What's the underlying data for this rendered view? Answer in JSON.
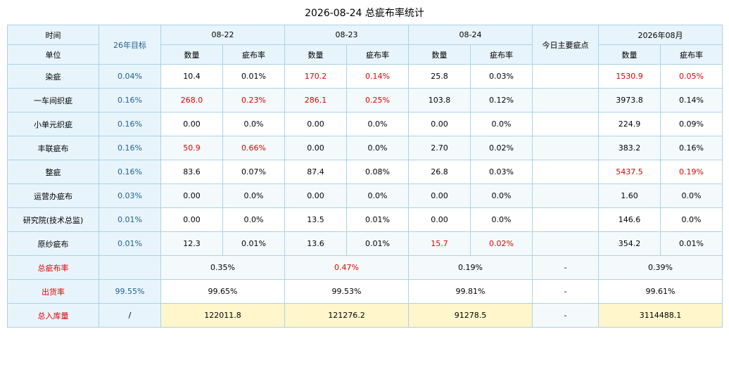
{
  "title": "2026-08-24 总疵布率统计",
  "header": {
    "time_label": "时间",
    "unit_label": "单位",
    "target_label": "26年目标",
    "dates": [
      "08-22",
      "08-23",
      "08-24"
    ],
    "main_defect_label": "今日主要疵点",
    "month_label": "2026年08月",
    "qty_label": "数量",
    "rate_label": "疵布率"
  },
  "rows": [
    {
      "unit": "染疵",
      "target": "0.04%",
      "d1_qty": "10.4",
      "d1_rate": "0.01%",
      "d2_qty": "170.2",
      "d2_rate": "0.14%",
      "d3_qty": "25.8",
      "d3_rate": "0.03%",
      "main": "",
      "m_qty": "1530.9",
      "m_rate": "0.05%"
    },
    {
      "unit": "一车间织疵",
      "target": "0.16%",
      "d1_qty": "268.0",
      "d1_rate": "0.23%",
      "d2_qty": "286.1",
      "d2_rate": "0.25%",
      "d3_qty": "103.8",
      "d3_rate": "0.12%",
      "main": "",
      "m_qty": "3973.8",
      "m_rate": "0.14%"
    },
    {
      "unit": "小单元织疵",
      "target": "0.16%",
      "d1_qty": "0.00",
      "d1_rate": "0.0%",
      "d2_qty": "0.00",
      "d2_rate": "0.0%",
      "d3_qty": "0.00",
      "d3_rate": "0.0%",
      "main": "",
      "m_qty": "224.9",
      "m_rate": "0.09%"
    },
    {
      "unit": "丰联疵布",
      "target": "0.16%",
      "d1_qty": "50.9",
      "d1_rate": "0.66%",
      "d2_qty": "0.00",
      "d2_rate": "0.0%",
      "d3_qty": "2.70",
      "d3_rate": "0.02%",
      "main": "",
      "m_qty": "383.2",
      "m_rate": "0.16%"
    },
    {
      "unit": "整疵",
      "target": "0.16%",
      "d1_qty": "83.6",
      "d1_rate": "0.07%",
      "d2_qty": "87.4",
      "d2_rate": "0.08%",
      "d3_qty": "26.8",
      "d3_rate": "0.03%",
      "main": "",
      "m_qty": "5437.5",
      "m_rate": "0.19%"
    },
    {
      "unit": "运营办疵布",
      "target": "0.03%",
      "d1_qty": "0.00",
      "d1_rate": "0.0%",
      "d2_qty": "0.00",
      "d2_rate": "0.0%",
      "d3_qty": "0.00",
      "d3_rate": "0.0%",
      "main": "",
      "m_qty": "1.60",
      "m_rate": "0.0%"
    },
    {
      "unit": "研究院(技术总监)",
      "target": "0.01%",
      "d1_qty": "0.00",
      "d1_rate": "0.0%",
      "d2_qty": "13.5",
      "d2_rate": "0.01%",
      "d3_qty": "0.00",
      "d3_rate": "0.0%",
      "main": "",
      "m_qty": "146.6",
      "m_rate": "0.0%"
    },
    {
      "unit": "原纱疵布",
      "target": "0.01%",
      "d1_qty": "12.3",
      "d1_rate": "0.01%",
      "d2_qty": "13.6",
      "d2_rate": "0.01%",
      "d3_qty": "15.7",
      "d3_rate": "0.02%",
      "main": "",
      "m_qty": "354.2",
      "m_rate": "0.01%"
    }
  ],
  "summary": {
    "total_rate": {
      "label": "总疵布率",
      "target": "",
      "d1": "0.35%",
      "d2": "0.47%",
      "d3": "0.19%",
      "main": "-",
      "month": "0.39%"
    },
    "shipping": {
      "label": "出货率",
      "target": "99.55%",
      "d1": "99.65%",
      "d2": "99.53%",
      "d3": "99.81%",
      "main": "-",
      "month": "99.61%"
    },
    "stock_in": {
      "label": "总入库量",
      "target": "/",
      "d1": "122011.8",
      "d2": "121276.2",
      "d3": "91278.5",
      "main": "-",
      "month": "3114488.1"
    }
  },
  "colors": {
    "highlight": "#e00000",
    "header_bg": "#e8f4fc",
    "border": "#a9d3e6",
    "target_text": "#1f5f8b",
    "stock_bg": "#fff6cc"
  }
}
